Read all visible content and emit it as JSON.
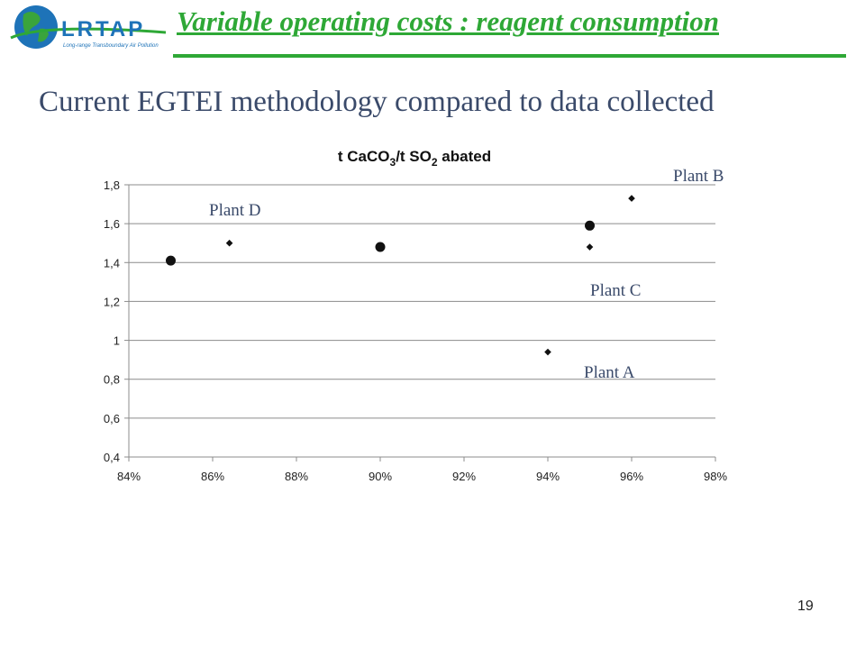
{
  "header": {
    "logo_text": "LRTAP",
    "logo_subtext": "Long-range Transboundary Air Pollution",
    "title": "Variable operating costs : reagent consumption"
  },
  "subtitle": "Current EGTEI methodology compared to data collected",
  "page_number": "19",
  "colors": {
    "accent_green": "#2ea836",
    "subtitle_blue": "#3a4a6a",
    "point_color": "#111111"
  },
  "chart_data": {
    "type": "scatter",
    "title": "t CaCO3/t SO2 abated",
    "title_parts": {
      "p1": "t CaCO",
      "s1": "3",
      "p2": "/t SO",
      "s2": "2",
      "p3": " abated"
    },
    "xlabel": "",
    "ylabel": "",
    "xlim": [
      0.84,
      0.98
    ],
    "ylim": [
      0.4,
      1.8
    ],
    "x_ticks": [
      "84%",
      "86%",
      "88%",
      "90%",
      "92%",
      "94%",
      "96%",
      "98%"
    ],
    "y_ticks": [
      "0,4",
      "0,6",
      "0,8",
      "1",
      "1,2",
      "1,4",
      "1,6",
      "1,8"
    ],
    "grid": "horizontal",
    "series": [
      {
        "marker": "circle",
        "points": [
          {
            "x": 0.85,
            "y": 1.41
          },
          {
            "x": 0.9,
            "y": 1.48
          },
          {
            "x": 0.95,
            "y": 1.59
          }
        ]
      },
      {
        "marker": "diamond",
        "points": [
          {
            "x": 0.864,
            "y": 1.5
          },
          {
            "x": 0.94,
            "y": 0.94
          },
          {
            "x": 0.95,
            "y": 1.48
          },
          {
            "x": 0.96,
            "y": 1.73
          }
        ]
      }
    ],
    "annotations": [
      "Plant D",
      "Plant B",
      "Plant C",
      "Plant A"
    ]
  }
}
